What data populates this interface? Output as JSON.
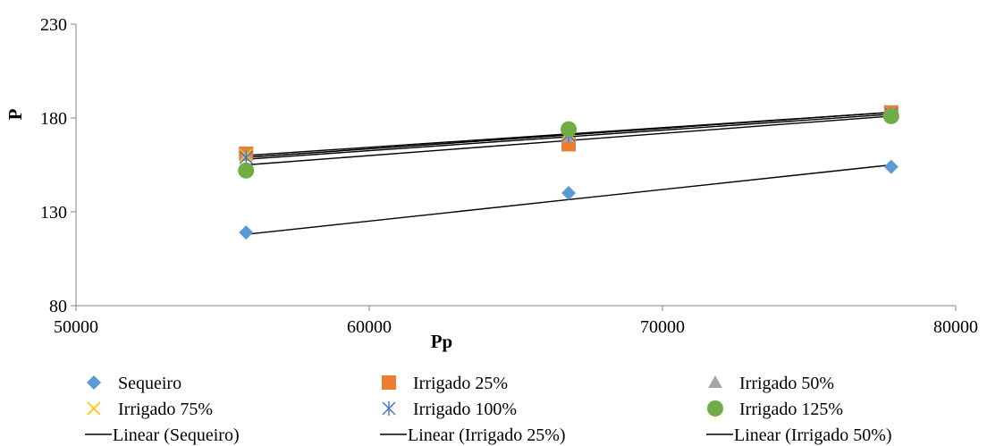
{
  "chart_data": {
    "type": "scatter",
    "xlabel": "Pp",
    "ylabel": "P",
    "xlim": [
      50000,
      80000
    ],
    "ylim": [
      80,
      230
    ],
    "xticks": [
      50000,
      60000,
      70000,
      80000
    ],
    "yticks": [
      80,
      130,
      180,
      230
    ],
    "grid": false,
    "legend_position": "bottom",
    "series": [
      {
        "name": "Sequeiro",
        "marker": "diamond",
        "color": "#5B9BD5",
        "x": [
          55800,
          66800,
          77800
        ],
        "y": [
          119,
          140,
          154
        ]
      },
      {
        "name": "Irrigado 25%",
        "marker": "square",
        "color": "#ED7D31",
        "x": [
          55800,
          66800,
          77800
        ],
        "y": [
          161,
          166,
          183
        ]
      },
      {
        "name": "Irrigado 50%",
        "marker": "triangle",
        "color": "#A5A5A5",
        "x": [
          55800,
          66800,
          77800
        ],
        "y": [
          160,
          170,
          183
        ]
      },
      {
        "name": "Irrigado 75%",
        "marker": "x",
        "color": "#FFC000",
        "x": [
          55800,
          66800,
          77800
        ],
        "y": [
          160,
          172,
          182
        ]
      },
      {
        "name": "Irrigado 100%",
        "marker": "star",
        "color": "#4472C4",
        "x": [
          55800,
          66800,
          77800
        ],
        "y": [
          159,
          171,
          182
        ]
      },
      {
        "name": "Irrigado 125%",
        "marker": "circle",
        "color": "#70AD47",
        "x": [
          55800,
          66800,
          77800
        ],
        "y": [
          152,
          174,
          181
        ]
      }
    ],
    "trendlines": [
      {
        "name": "Linear (Sequeiro)",
        "color": "#000000",
        "x": [
          55800,
          77800
        ],
        "y": [
          118,
          155
        ]
      },
      {
        "name": "Linear (Irrigado 25%)",
        "color": "#000000",
        "x": [
          55800,
          77800
        ],
        "y": [
          160,
          183
        ]
      },
      {
        "name": "Linear (Irrigado 50%)",
        "color": "#000000",
        "x": [
          55800,
          77800
        ],
        "y": [
          159,
          183
        ]
      },
      {
        "name": "",
        "color": "#000000",
        "x": [
          55800,
          77800
        ],
        "y": [
          159,
          183
        ]
      },
      {
        "name": "",
        "color": "#000000",
        "x": [
          55800,
          77800
        ],
        "y": [
          158,
          182
        ]
      },
      {
        "name": "",
        "color": "#000000",
        "x": [
          55800,
          77800
        ],
        "y": [
          155,
          181
        ]
      }
    ],
    "legend": [
      {
        "label": "Sequeiro",
        "kind": "marker",
        "marker": "diamond",
        "color": "#5B9BD5"
      },
      {
        "label": "Irrigado 25%",
        "kind": "marker",
        "marker": "square",
        "color": "#ED7D31"
      },
      {
        "label": "Irrigado 50%",
        "kind": "marker",
        "marker": "triangle",
        "color": "#A5A5A5"
      },
      {
        "label": "Irrigado 75%",
        "kind": "marker",
        "marker": "x",
        "color": "#FFC000"
      },
      {
        "label": "Irrigado 100%",
        "kind": "marker",
        "marker": "star",
        "color": "#4472C4"
      },
      {
        "label": "Irrigado 125%",
        "kind": "marker",
        "marker": "circle",
        "color": "#70AD47"
      },
      {
        "label": "Linear (Sequeiro)",
        "kind": "line",
        "color": "#000000"
      },
      {
        "label": "Linear (Irrigado 25%)",
        "kind": "line",
        "color": "#000000"
      },
      {
        "label": "Linear (Irrigado 50%)",
        "kind": "line",
        "color": "#000000"
      }
    ]
  }
}
